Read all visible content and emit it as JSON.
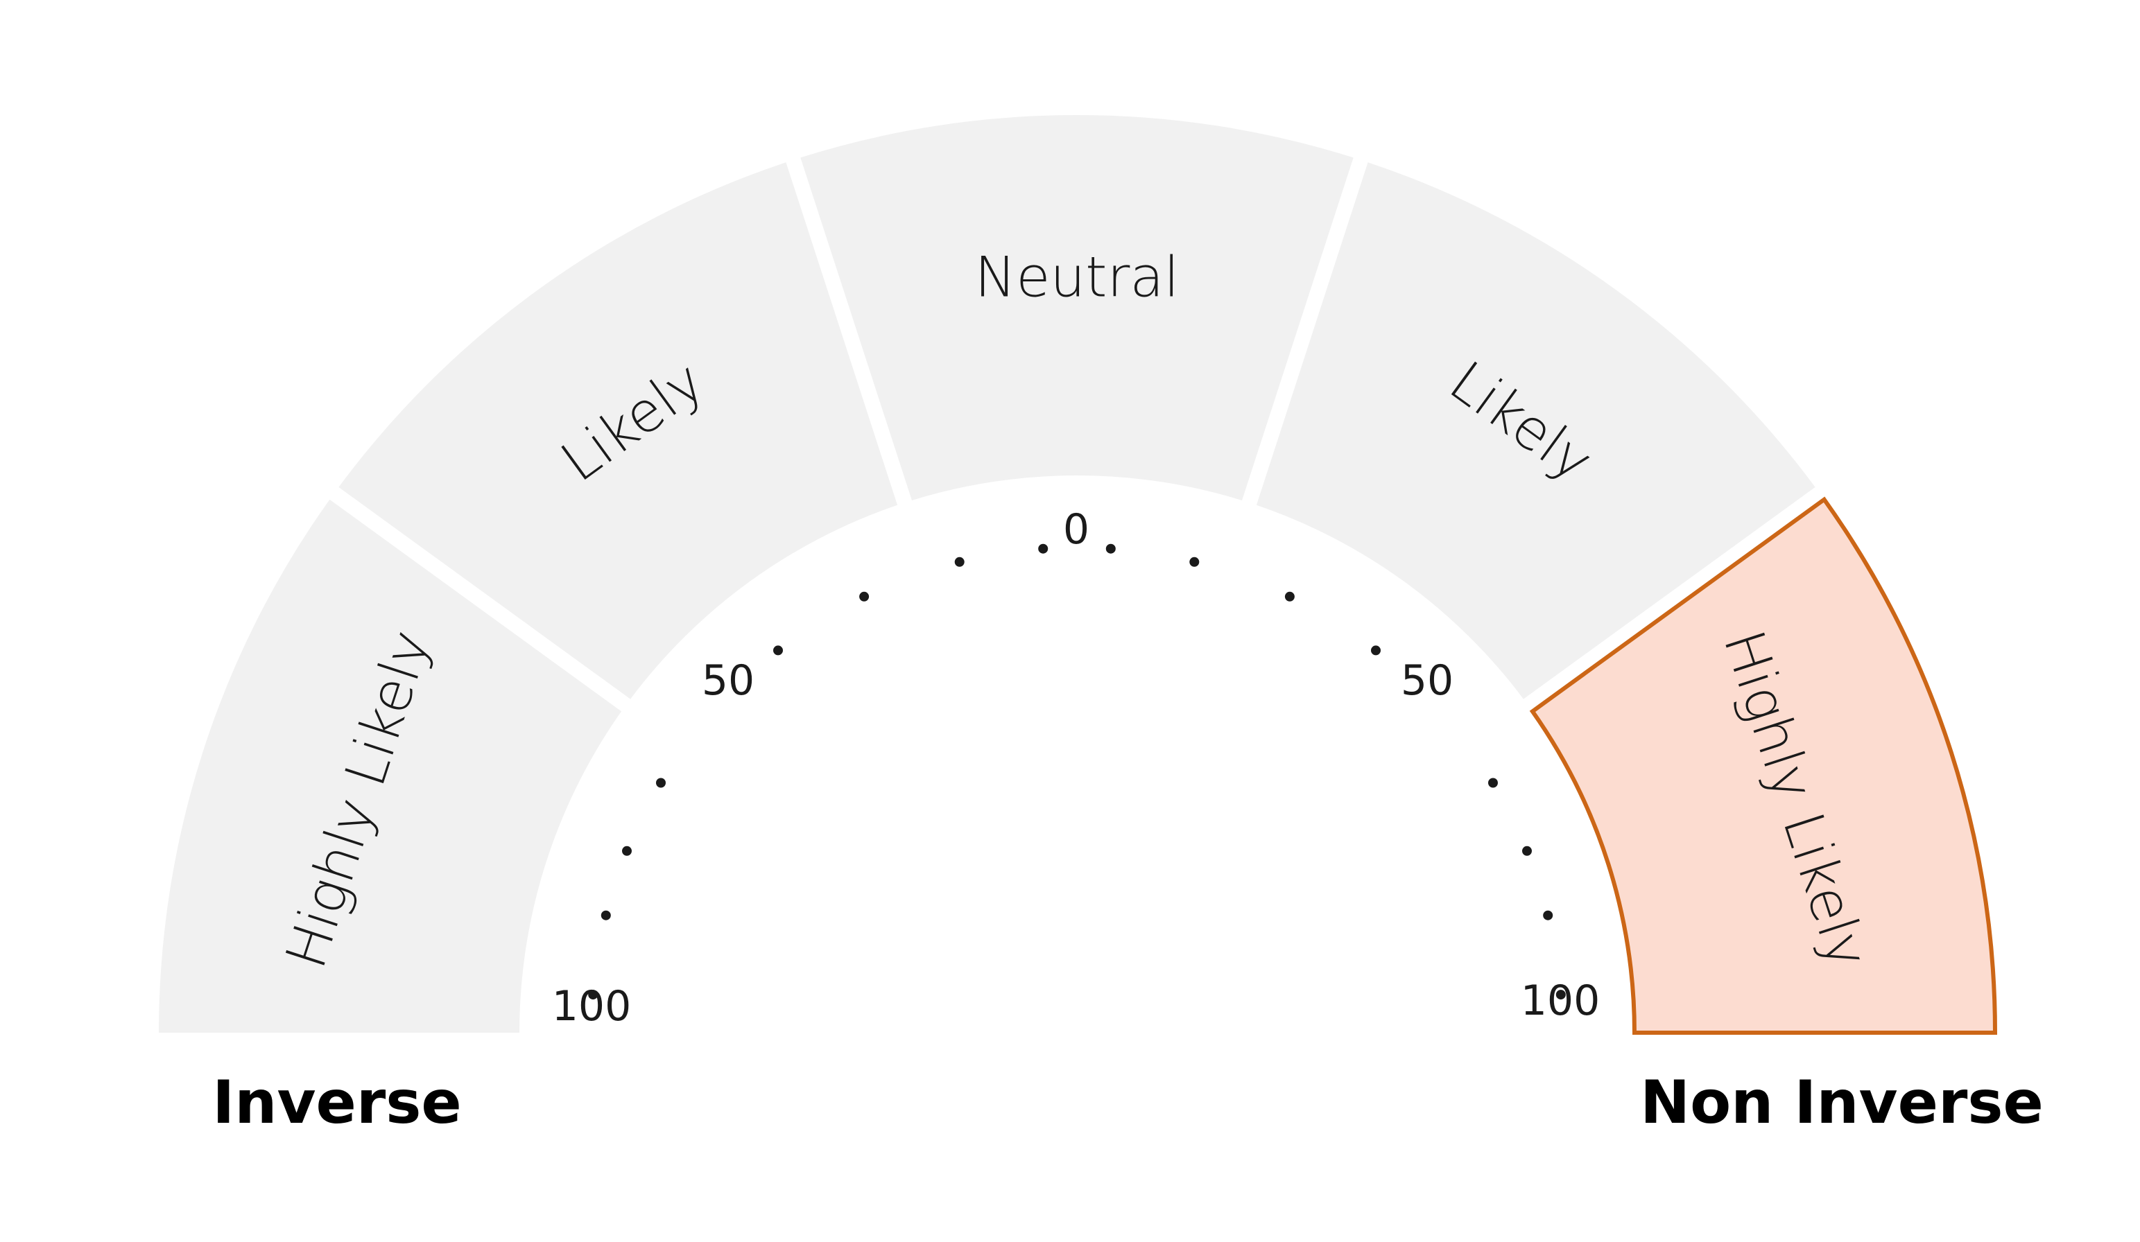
{
  "chart_data": {
    "type": "gauge",
    "segments": [
      {
        "label": "Highly Likely",
        "side": "inverse",
        "highlighted": false
      },
      {
        "label": "Likely",
        "side": "inverse",
        "highlighted": false
      },
      {
        "label": "Neutral",
        "side": "neutral",
        "highlighted": false
      },
      {
        "label": "Likely",
        "side": "non-inverse",
        "highlighted": false
      },
      {
        "label": "Highly Likely",
        "side": "non-inverse",
        "highlighted": true
      }
    ],
    "scale_labels": {
      "left": [
        "100",
        "50",
        "0"
      ],
      "right": [
        "50",
        "100"
      ]
    },
    "side_labels": {
      "left": "Inverse",
      "right": "Non Inverse"
    },
    "selected_value": "Non Inverse — Highly Likely"
  },
  "colors": {
    "segment_fill": "#f1f1f1",
    "highlight_fill": "#fcdcd0",
    "highlight_stroke": "#cc6616",
    "dot": "#1a1a1a",
    "text": "#1a1a1a"
  }
}
